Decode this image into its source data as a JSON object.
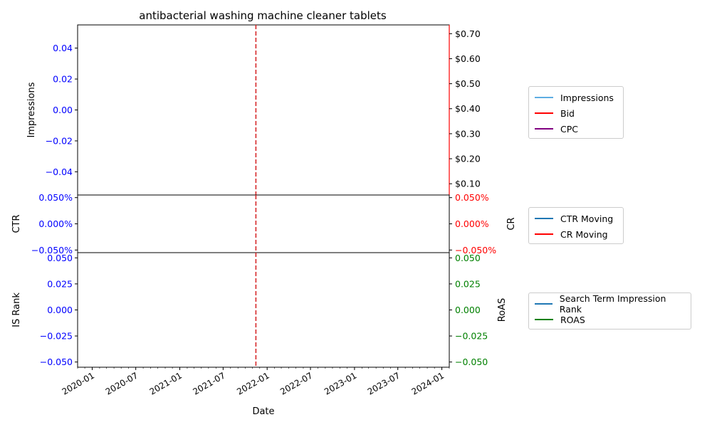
{
  "chart_data": {
    "type": "line",
    "title": "antibacterial washing machine cleaner tablets",
    "xlabel": "Date",
    "x_ticks": [
      "2020-01",
      "2020-07",
      "2021-01",
      "2021-07",
      "2022-01",
      "2022-07",
      "2023-01",
      "2023-07",
      "2024-01"
    ],
    "x_range": [
      "2019-11-01",
      "2024-02-01"
    ],
    "marker_date": "2021-11-15",
    "marker_color": "#d62728",
    "panels": [
      {
        "left_label": "Impressions",
        "left_ticks": [
          "−0.04",
          "−0.02",
          "0.00",
          "0.02",
          "0.04"
        ],
        "left_range": [
          -0.055,
          0.055
        ],
        "left_tick_color": "#0000ff",
        "right_label": "",
        "right_ticks": [
          "$0.10",
          "$0.20",
          "$0.30",
          "$0.40",
          "$0.50",
          "$0.60",
          "$0.70"
        ],
        "right_range": [
          0.055,
          0.735
        ],
        "right_tick_color": "#000000",
        "right_spine_color": "#ff0000",
        "series": [
          {
            "name": "Impressions",
            "color": "#5dade2",
            "values": []
          },
          {
            "name": "Bid",
            "color": "#ff0000",
            "values": []
          },
          {
            "name": "CPC",
            "color": "#800080",
            "values": []
          }
        ]
      },
      {
        "left_label": "CTR",
        "left_ticks": [
          "−0.050%",
          "0.000%",
          "0.050%"
        ],
        "left_range": [
          -0.055,
          0.055
        ],
        "left_tick_color": "#0000ff",
        "right_label": "CR",
        "right_ticks": [
          "−0.050%",
          "0.000%",
          "0.050%"
        ],
        "right_range": [
          -0.055,
          0.055
        ],
        "right_tick_color": "#ff0000",
        "series": [
          {
            "name": "CTR Moving",
            "color": "#1f77b4",
            "values": []
          },
          {
            "name": "CR Moving",
            "color": "#ff0000",
            "values": []
          }
        ]
      },
      {
        "left_label": "IS Rank",
        "left_ticks": [
          "−0.050",
          "−0.025",
          "0.000",
          "0.025",
          "0.050"
        ],
        "left_range": [
          -0.055,
          0.055
        ],
        "left_tick_color": "#0000ff",
        "right_label": "RoAS",
        "right_ticks": [
          "−0.050",
          "−0.025",
          "0.000",
          "0.025",
          "0.050"
        ],
        "right_range": [
          -0.055,
          0.055
        ],
        "right_tick_color": "#008000",
        "series": [
          {
            "name": "Search Term Impression Rank",
            "color": "#1f77b4",
            "values": []
          },
          {
            "name": "ROAS",
            "color": "#008000",
            "values": []
          }
        ]
      }
    ]
  }
}
